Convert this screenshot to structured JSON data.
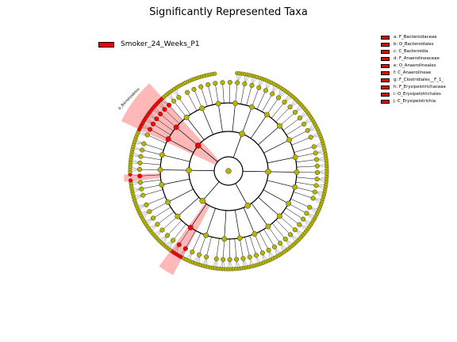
{
  "figure": {
    "title": "Significantly Represented Taxa"
  },
  "legend": {
    "label": "Smoker_24_Weeks_P1",
    "color": "#ff0000"
  },
  "taxa_legend": [
    {
      "key": "a",
      "label": "a: F_Bacteroidaceae"
    },
    {
      "key": "b",
      "label": "b: O_Bacteroidales"
    },
    {
      "key": "c",
      "label": "c: C_Bacteroidia"
    },
    {
      "key": "d",
      "label": "d: F_Anaerolineaceae"
    },
    {
      "key": "e",
      "label": "e: O_Anaerolineales"
    },
    {
      "key": "f",
      "label": "f: C_Anaerolineae"
    },
    {
      "key": "g",
      "label": "g: F_Clostridiales__F_1_"
    },
    {
      "key": "h",
      "label": "h: F_Erysipelotrichaceae"
    },
    {
      "key": "i",
      "label": "i: O_Erysipelotrichales"
    },
    {
      "key": "j",
      "label": "j: C_Erysipelotrichia"
    }
  ],
  "clade_labels": {
    "bacteroidetes": "p_Bacteroidetes"
  },
  "colors": {
    "highlight": "#ff0000",
    "node_default": "#b5b500",
    "edge": "#000000"
  }
}
